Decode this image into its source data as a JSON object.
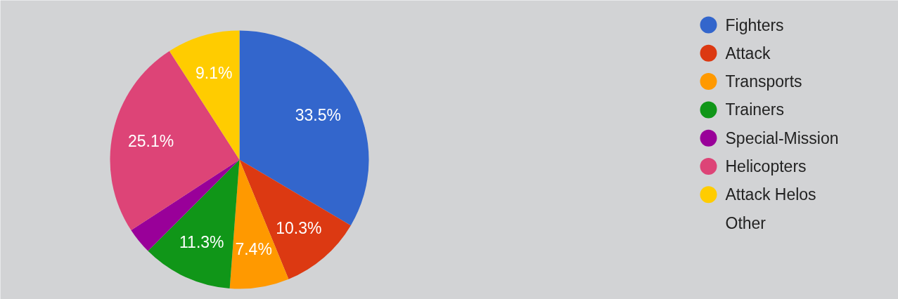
{
  "chart_data": {
    "type": "pie",
    "categories": [
      "Fighters",
      "Attack",
      "Transports",
      "Trainers",
      "Special-Mission",
      "Helicopters",
      "Attack Helos",
      "Other"
    ],
    "values": [
      33.5,
      10.3,
      7.4,
      11.3,
      3.3,
      25.1,
      9.1,
      0
    ],
    "colors": [
      "#3366cc",
      "#dc3912",
      "#ff9900",
      "#109618",
      "#990099",
      "#dd4477",
      "#ffcc00",
      null
    ],
    "value_labels": [
      "33.5%",
      "10.3%",
      "7.4%",
      "11.3%",
      null,
      "25.1%",
      "9.1%",
      null
    ],
    "legend": "top right"
  }
}
